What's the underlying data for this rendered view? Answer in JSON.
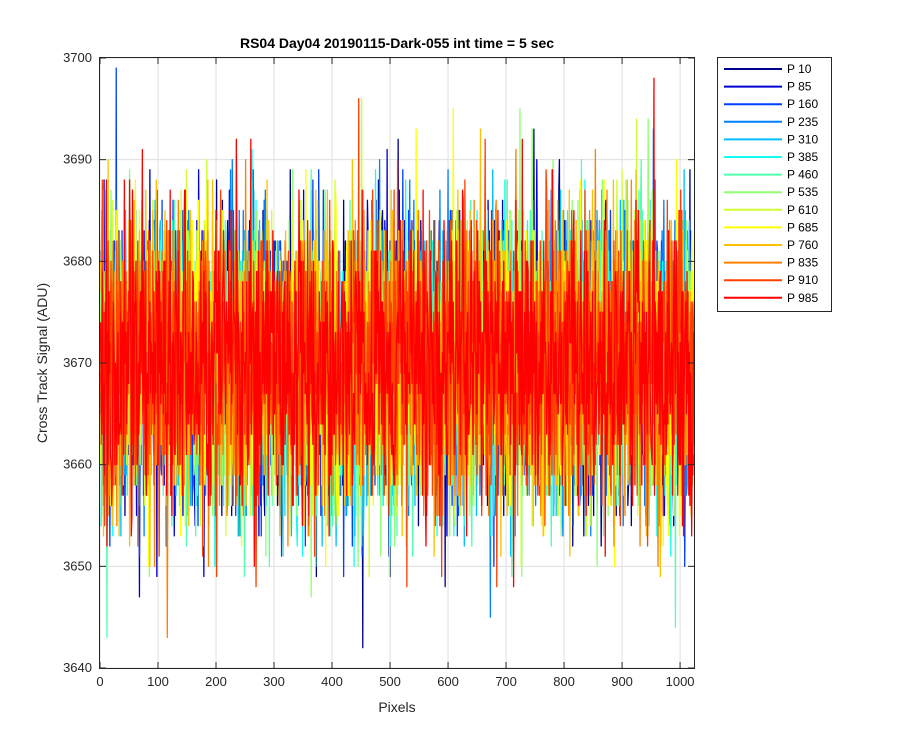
{
  "chart_data": {
    "type": "line",
    "title": "RS04 Day04 20190115-Dark-055 int time = 5 sec",
    "xlabel": "Pixels",
    "ylabel": "Cross Track Signal (ADU)",
    "xlim": [
      0,
      1024
    ],
    "ylim": [
      3640,
      3700
    ],
    "xticks": [
      "0",
      "100",
      "200",
      "300",
      "400",
      "500",
      "600",
      "700",
      "800",
      "900",
      "1000"
    ],
    "yticks": [
      "3640",
      "3650",
      "3660",
      "3670",
      "3680",
      "3690",
      "3700"
    ],
    "grid": true,
    "legend_position": "outside-top-right",
    "x_points": 1024,
    "series_mean": 3670,
    "series_std": 7,
    "series": [
      {
        "name": "P 10",
        "color": "#00008f"
      },
      {
        "name": "P 85",
        "color": "#0000d0"
      },
      {
        "name": "P 160",
        "color": "#0040ff"
      },
      {
        "name": "P 235",
        "color": "#0080ff"
      },
      {
        "name": "P 310",
        "color": "#00bfff"
      },
      {
        "name": "P 385",
        "color": "#10ffef"
      },
      {
        "name": "P 460",
        "color": "#50ffaf"
      },
      {
        "name": "P 535",
        "color": "#8fff70"
      },
      {
        "name": "P 610",
        "color": "#cfff30"
      },
      {
        "name": "P 685",
        "color": "#ffff00"
      },
      {
        "name": "P 760",
        "color": "#ffc000"
      },
      {
        "name": "P 835",
        "color": "#ff8000"
      },
      {
        "name": "P 910",
        "color": "#ff4000"
      },
      {
        "name": "P 985",
        "color": "#ff0000"
      }
    ]
  }
}
